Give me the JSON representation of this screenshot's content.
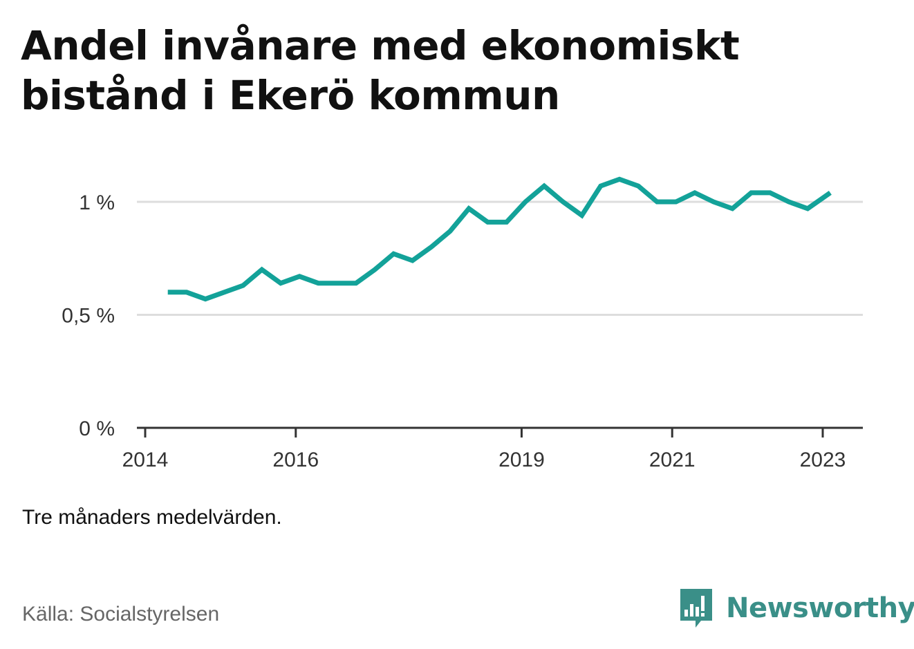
{
  "title": "Andel invånare med ekonomiskt bistånd i Ekerö kommun",
  "note": "Tre månaders medelvärden.",
  "source": "Källa: Socialstyrelsen",
  "brand": {
    "name": "Newsworthy",
    "icon": "newsworthy-logo-icon",
    "color": "#3a8f88"
  },
  "colors": {
    "line": "#13a299",
    "grid": "#dddddd",
    "axis": "#333333"
  },
  "chart_data": {
    "type": "line",
    "title": "Andel invånare med ekonomiskt bistånd i Ekerö kommun",
    "xlabel": "",
    "ylabel": "",
    "ylim": [
      0,
      1.1
    ],
    "xlim": [
      2013.9,
      2023.25
    ],
    "grid": true,
    "legend": "none",
    "yticks": [
      {
        "value": 0,
        "label": "0 %"
      },
      {
        "value": 0.5,
        "label": "0,5 %"
      },
      {
        "value": 1.0,
        "label": "1 %"
      }
    ],
    "xticks": [
      {
        "value": 2014,
        "label": "2014"
      },
      {
        "value": 2016,
        "label": "2016"
      },
      {
        "value": 2019,
        "label": "2019"
      },
      {
        "value": 2021,
        "label": "2021"
      },
      {
        "value": 2023,
        "label": "2023"
      }
    ],
    "series": [
      {
        "color": "#13a299",
        "x": [
          2014.3,
          2014.55,
          2014.8,
          2015.05,
          2015.3,
          2015.55,
          2015.8,
          2016.05,
          2016.3,
          2016.55,
          2016.8,
          2017.05,
          2017.3,
          2017.55,
          2017.8,
          2018.05,
          2018.3,
          2018.55,
          2018.8,
          2019.05,
          2019.3,
          2019.55,
          2019.8,
          2020.05,
          2020.3,
          2020.55,
          2020.8,
          2021.05,
          2021.3,
          2021.55,
          2021.8,
          2022.05,
          2022.3,
          2022.55,
          2022.8,
          2023.1
        ],
        "y": [
          0.6,
          0.6,
          0.57,
          0.6,
          0.63,
          0.7,
          0.64,
          0.67,
          0.64,
          0.64,
          0.64,
          0.7,
          0.77,
          0.74,
          0.8,
          0.87,
          0.97,
          0.91,
          0.91,
          1.0,
          1.07,
          1.0,
          0.94,
          1.07,
          1.1,
          1.07,
          1.0,
          1.0,
          1.04,
          1.0,
          0.97,
          1.04,
          1.04,
          1.0,
          0.97,
          1.04
        ]
      }
    ]
  }
}
